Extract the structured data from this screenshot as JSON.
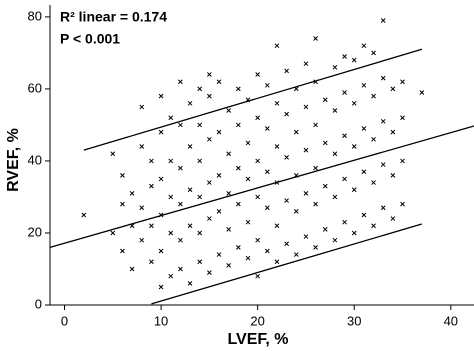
{
  "chart_data": {
    "type": "scatter",
    "annotations": [
      "R² linear = 0.174",
      "P < 0.001"
    ],
    "x_label": "LVEF, %",
    "y_label": "RVEF, %",
    "xlim": [
      -1.5,
      42.4
    ],
    "ylim": [
      0,
      83.3
    ],
    "xticks": [
      0,
      10,
      20,
      30,
      40
    ],
    "yticks": [
      0,
      20,
      40,
      60,
      80
    ],
    "color": "#000000",
    "x": [
      2,
      5,
      5,
      6,
      6,
      6,
      7,
      7,
      7,
      8,
      8,
      8,
      8,
      9,
      9,
      9,
      9,
      10,
      10,
      10,
      10,
      10,
      10,
      11,
      11,
      11,
      11,
      11,
      12,
      12,
      12,
      12,
      12,
      12,
      13,
      13,
      13,
      13,
      13,
      14,
      14,
      14,
      14,
      14,
      14,
      15,
      15,
      15,
      15,
      15,
      15,
      16,
      16,
      16,
      16,
      16,
      17,
      17,
      17,
      17,
      17,
      18,
      18,
      18,
      18,
      18,
      19,
      19,
      19,
      19,
      19,
      20,
      20,
      20,
      20,
      20,
      20,
      21,
      21,
      21,
      21,
      21,
      22,
      22,
      22,
      22,
      22,
      22,
      23,
      23,
      23,
      23,
      23,
      24,
      24,
      24,
      24,
      24,
      25,
      25,
      25,
      25,
      25,
      26,
      26,
      26,
      26,
      26,
      26,
      27,
      27,
      27,
      27,
      28,
      28,
      28,
      28,
      28,
      29,
      29,
      29,
      29,
      29,
      30,
      30,
      30,
      30,
      30,
      31,
      31,
      31,
      31,
      31,
      32,
      32,
      32,
      32,
      32,
      33,
      33,
      33,
      33,
      33,
      34,
      34,
      34,
      34,
      35,
      35,
      35,
      35,
      37
    ],
    "y": [
      25,
      20,
      42,
      15,
      28,
      36,
      10,
      22,
      31,
      18,
      27,
      44,
      55,
      12,
      22,
      33,
      40,
      5,
      15,
      25,
      35,
      48,
      58,
      8,
      20,
      30,
      40,
      52,
      10,
      18,
      28,
      38,
      50,
      62,
      6,
      22,
      32,
      44,
      56,
      12,
      20,
      30,
      40,
      50,
      60,
      9,
      24,
      34,
      46,
      58,
      64,
      14,
      26,
      36,
      48,
      62,
      11,
      21,
      31,
      42,
      54,
      16,
      28,
      38,
      50,
      60,
      13,
      23,
      35,
      45,
      57,
      8,
      18,
      30,
      40,
      52,
      64,
      15,
      27,
      37,
      49,
      61,
      12,
      22,
      34,
      44,
      56,
      72,
      17,
      29,
      41,
      53,
      65,
      14,
      26,
      36,
      48,
      60,
      19,
      31,
      43,
      55,
      67,
      16,
      28,
      38,
      50,
      62,
      74,
      21,
      33,
      45,
      57,
      18,
      30,
      42,
      54,
      66,
      23,
      35,
      47,
      59,
      69,
      20,
      32,
      44,
      56,
      68,
      25,
      37,
      49,
      61,
      72,
      22,
      34,
      46,
      58,
      70,
      27,
      39,
      51,
      63,
      79,
      24,
      36,
      48,
      60,
      28,
      40,
      52,
      62,
      59
    ],
    "fit_lines": [
      {
        "x": [
          2,
          37
        ],
        "y": [
          43,
          71
        ]
      },
      {
        "x": [
          -1.5,
          42.4
        ],
        "y": [
          16,
          49.7
        ]
      },
      {
        "x": [
          9,
          37
        ],
        "y": [
          0.3,
          22.5
        ]
      }
    ]
  }
}
